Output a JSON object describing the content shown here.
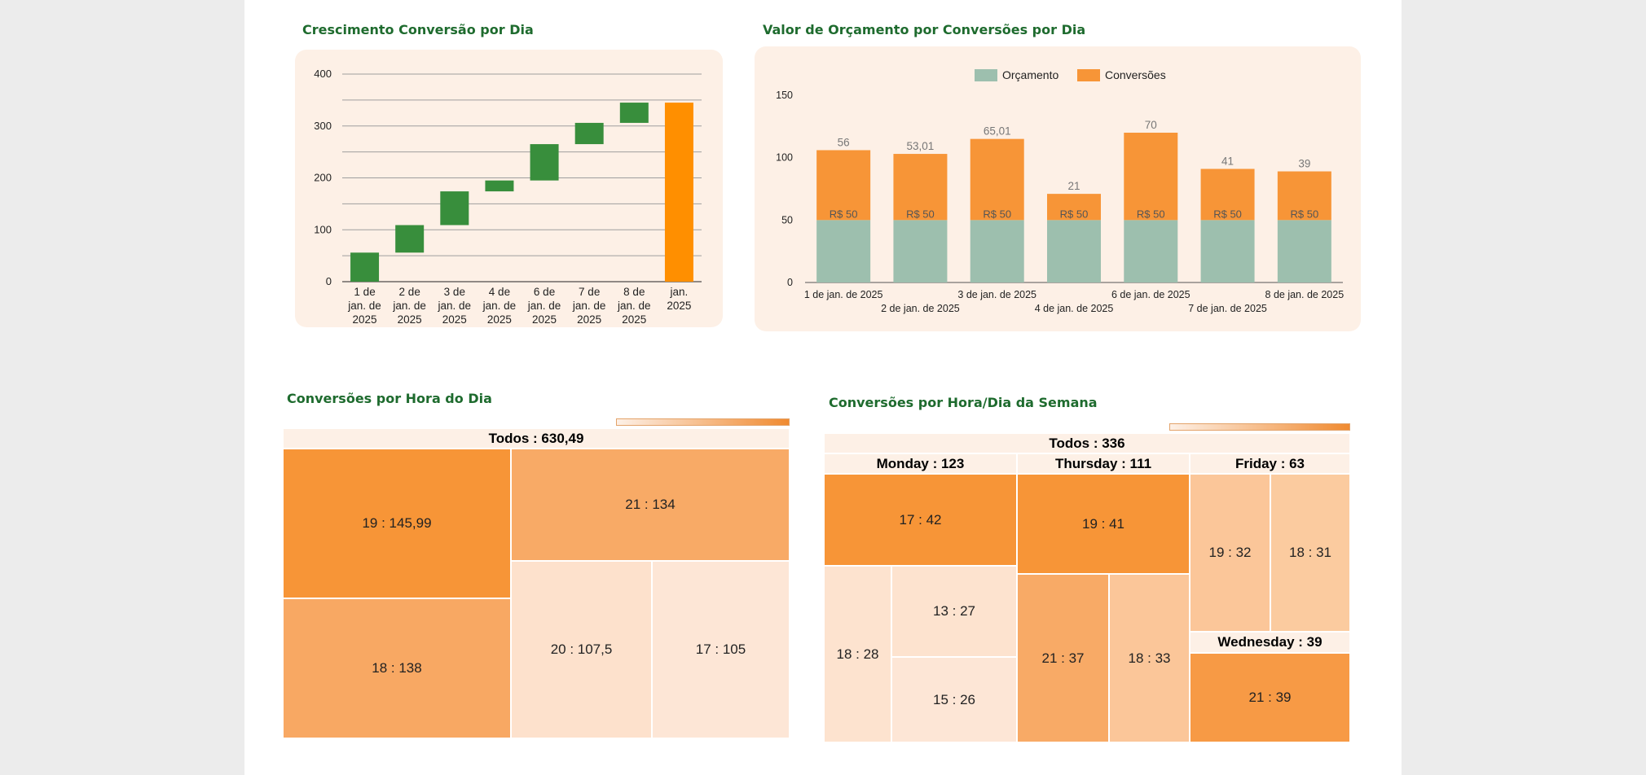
{
  "waterfall": {
    "title": "Crescimento Conversão por Dia",
    "chart_data": {
      "type": "bar",
      "subtype": "waterfall",
      "categories": [
        [
          "1 de",
          "jan. de",
          "2025"
        ],
        [
          "2 de",
          "jan. de",
          "2025"
        ],
        [
          "3 de",
          "jan. de",
          "2025"
        ],
        [
          "4 de",
          "jan. de",
          "2025"
        ],
        [
          "6 de",
          "jan. de",
          "2025"
        ],
        [
          "7 de",
          "jan. de",
          "2025"
        ],
        [
          "8 de",
          "jan. de",
          "2025"
        ],
        [
          "jan.",
          "2025"
        ]
      ],
      "values": [
        56,
        53,
        65,
        21,
        70,
        41,
        39,
        345
      ],
      "is_total": [
        false,
        false,
        false,
        false,
        false,
        false,
        false,
        true
      ],
      "ylim": [
        0,
        400
      ],
      "yticks": [
        0,
        100,
        200,
        300,
        400
      ],
      "colors": {
        "increase": "#388e3c",
        "total": "#ff8f00"
      }
    }
  },
  "budget": {
    "title": "Valor de Orçamento por Conversões por Dia",
    "chart_data": {
      "type": "bar",
      "stacked": true,
      "categories": [
        "1 de jan. de 2025",
        "2 de jan. de 2025",
        "3 de jan. de 2025",
        "4 de jan. de 2025",
        "6 de jan. de 2025",
        "7 de jan. de 2025",
        "8 de jan. de 2025"
      ],
      "series": [
        {
          "name": "Orçamento",
          "values": [
            50,
            50,
            50,
            50,
            50,
            50,
            50
          ],
          "labels": [
            "R$ 50",
            "R$ 50",
            "R$ 50",
            "R$ 50",
            "R$ 50",
            "R$ 50",
            "R$ 50"
          ],
          "color": "#9dbfae"
        },
        {
          "name": "Conversões",
          "values": [
            56,
            53.01,
            65.01,
            21,
            70,
            41,
            39
          ],
          "labels": [
            "56",
            "53,01",
            "65,01",
            "21",
            "70",
            "41",
            "39"
          ],
          "color": "#f79537"
        }
      ],
      "ylim": [
        0,
        150
      ],
      "yticks": [
        0,
        50,
        100,
        150
      ],
      "legend": "top"
    }
  },
  "hour_tree": {
    "title": "Conversões por Hora do Dia",
    "chart_data": {
      "type": "treemap",
      "root": "Todos : 630,49",
      "items": [
        {
          "label": "19 : 145,99",
          "value": 145.99
        },
        {
          "label": "18 : 138",
          "value": 138
        },
        {
          "label": "21 : 134",
          "value": 134
        },
        {
          "label": "20 : 107,5",
          "value": 107.5
        },
        {
          "label": "17 : 105",
          "value": 105
        }
      ]
    }
  },
  "week_tree": {
    "title": "Conversões por Hora/Dia da Semana",
    "chart_data": {
      "type": "treemap",
      "root": "Todos : 336",
      "groups": [
        {
          "label": "Monday : 123",
          "items": [
            {
              "label": "17 : 42",
              "value": 42
            },
            {
              "label": "18 : 28",
              "value": 28
            },
            {
              "label": "13 : 27",
              "value": 27
            },
            {
              "label": "15 : 26",
              "value": 26
            }
          ]
        },
        {
          "label": "Thursday : 111",
          "items": [
            {
              "label": "19 : 41",
              "value": 41
            },
            {
              "label": "21 : 37",
              "value": 37
            },
            {
              "label": "18 : 33",
              "value": 33
            }
          ]
        },
        {
          "label": "Friday : 63",
          "items": [
            {
              "label": "19 : 32",
              "value": 32
            },
            {
              "label": "18 : 31",
              "value": 31
            }
          ]
        },
        {
          "label": "Wednesday : 39",
          "items": [
            {
              "label": "21 : 39",
              "value": 39
            }
          ]
        }
      ]
    }
  }
}
